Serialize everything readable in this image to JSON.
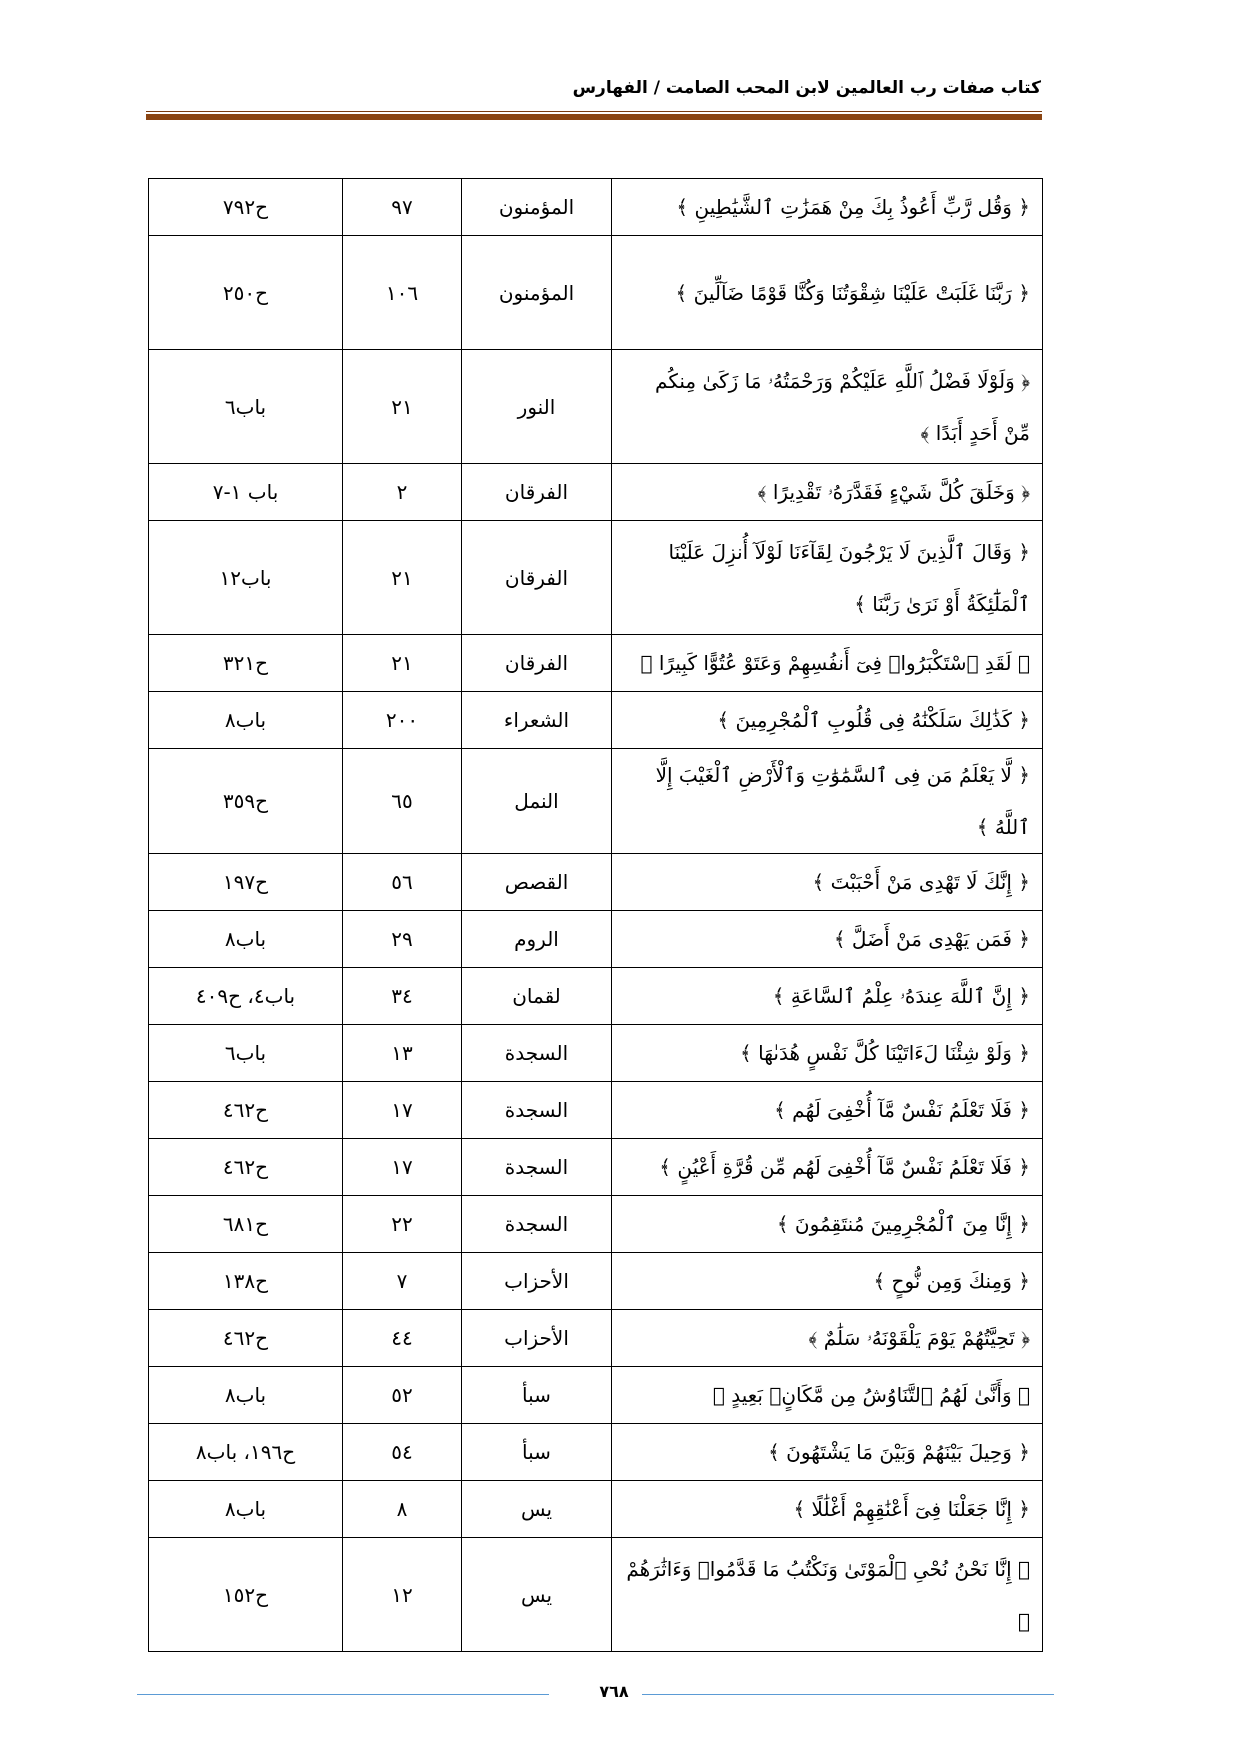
{
  "header": {
    "title": "كتاب صفات رب العالمين لابن المحب الصامت / الفهارس",
    "rule_color": "#8b4513"
  },
  "table": {
    "rows": [
      {
        "ayah": "﴿ وَقُل رَّبِّ أَعُوذُ بِكَ مِنْ هَمَزَٰتِ ٱلشَّيَٰطِينِ ﴾",
        "surah": "المؤمنون",
        "verse": "٩٧",
        "ref": "ح٧٩٢",
        "tall": false
      },
      {
        "ayah": "﴿ رَبَّنَا غَلَبَتْ عَلَيْنَا شِقْوَتُنَا وَكُنَّا قَوْمًا ضَآلِّينَ ﴾",
        "surah": "المؤمنون",
        "verse": "١٠٦",
        "ref": "ح٢٥٠",
        "tall": true
      },
      {
        "ayah": "﴿ وَلَوْلَا فَضْلُ ٱللَّهِ عَلَيْكُمْ وَرَحْمَتُهُۥ مَا زَكَىٰ مِنكُم مِّنْ أَحَدٍ أَبَدًا ﴾",
        "surah": "النور",
        "verse": "٢١",
        "ref": "باب٦",
        "tall": true
      },
      {
        "ayah": "﴿ وَخَلَقَ كُلَّ شَيْءٍ فَقَدَّرَهُۥ تَقْدِيرًا ﴾",
        "surah": "الفرقان",
        "verse": "٢",
        "ref": "باب ١-٧",
        "tall": false
      },
      {
        "ayah": "﴿ وَقَالَ ٱلَّذِينَ لَا يَرْجُونَ لِقَآءَنَا لَوْلَآ أُنزِلَ عَلَيْنَا ٱلْمَلَٰٓئِكَةُ أَوْ نَرَىٰ رَبَّنَا ﴾",
        "surah": "الفرقان",
        "verse": "٢١",
        "ref": "باب١٢",
        "tall": true
      },
      {
        "ayah": "﴿ لَقَدِ ٱسْتَكْبَرُوا۟ فِىٓ أَنفُسِهِمْ وَعَتَوْ عُتُوًّا كَبِيرًا ﴾",
        "surah": "الفرقان",
        "verse": "٢١",
        "ref": "ح٣٢١",
        "tall": false
      },
      {
        "ayah": "﴿ كَذَٰلِكَ سَلَكْنَٰهُ فِى قُلُوبِ ٱلْمُجْرِمِينَ ﴾",
        "surah": "الشعراء",
        "verse": "٢٠٠",
        "ref": "باب٨",
        "tall": false
      },
      {
        "ayah": "﴿ لَّا يَعْلَمُ مَن فِى ٱلسَّمَٰوَٰتِ وَٱلْأَرْضِ ٱلْغَيْبَ إِلَّا ٱللَّهُ ﴾",
        "surah": "النمل",
        "verse": "٦٥",
        "ref": "ح٣٥٩",
        "tall": false
      },
      {
        "ayah": "﴿ إِنَّكَ لَا تَهْدِى مَنْ أَحْبَبْتَ ﴾",
        "surah": "القصص",
        "verse": "٥٦",
        "ref": "ح١٩٧",
        "tall": false
      },
      {
        "ayah": "﴿ فَمَن يَهْدِى مَنْ أَضَلَّ ﴾",
        "surah": "الروم",
        "verse": "٢٩",
        "ref": "باب٨",
        "tall": false
      },
      {
        "ayah": "﴿ إِنَّ ٱللَّهَ عِندَهُۥ عِلْمُ ٱلسَّاعَةِ ﴾",
        "surah": "لقمان",
        "verse": "٣٤",
        "ref": "باب٤، ح٤٠٩",
        "tall": false
      },
      {
        "ayah": "﴿ وَلَوْ شِئْنَا لَءَاتَيْنَا كُلَّ نَفْسٍ هُدَىٰهَا ﴾",
        "surah": "السجدة",
        "verse": "١٣",
        "ref": "باب٦",
        "tall": false
      },
      {
        "ayah": "﴿ فَلَا تَعْلَمُ نَفْسٌ مَّآ أُخْفِىَ لَهُم ﴾",
        "surah": "السجدة",
        "verse": "١٧",
        "ref": "ح٤٦٢",
        "tall": false
      },
      {
        "ayah": "﴿ فَلَا تَعْلَمُ نَفْسٌ مَّآ أُخْفِىَ لَهُم مِّن قُرَّةِ أَعْيُنٍ ﴾",
        "surah": "السجدة",
        "verse": "١٧",
        "ref": "ح٤٦٢",
        "tall": false
      },
      {
        "ayah": "﴿ إِنَّا مِنَ ٱلْمُجْرِمِينَ مُنتَقِمُونَ ﴾",
        "surah": "السجدة",
        "verse": "٢٢",
        "ref": "ح٦٨١",
        "tall": false
      },
      {
        "ayah": "﴿ وَمِنكَ وَمِن نُّوحٍ ﴾",
        "surah": "الأحزاب",
        "verse": "٧",
        "ref": "ح١٣٨",
        "tall": false
      },
      {
        "ayah": "﴿ تَحِيَّتُهُمْ يَوْمَ يَلْقَوْنَهُۥ سَلَٰمٌ ﴾",
        "surah": "الأحزاب",
        "verse": "٤٤",
        "ref": "ح٤٦٢",
        "tall": false
      },
      {
        "ayah": "﴿ وَأَنَّىٰ لَهُمُ ٱلتَّنَاوُشُ مِن مَّكَانٍۭ بَعِيدٍ ﴾",
        "surah": "سبأ",
        "verse": "٥٢",
        "ref": "باب٨",
        "tall": false
      },
      {
        "ayah": "﴿ وَحِيلَ بَيْنَهُمْ وَبَيْنَ مَا يَشْتَهُونَ ﴾",
        "surah": "سبأ",
        "verse": "٥٤",
        "ref": "ح١٩٦، باب٨",
        "tall": false
      },
      {
        "ayah": "﴿ إِنَّا جَعَلْنَا فِىٓ أَعْنَٰقِهِمْ أَغْلَٰلًا ﴾",
        "surah": "يس",
        "verse": "٨",
        "ref": "باب٨",
        "tall": false
      },
      {
        "ayah": "﴿ إِنَّا نَحْنُ نُحْىِ ٱلْمَوْتَىٰ وَنَكْتُبُ مَا قَدَّمُوا۟ وَءَاثَٰرَهُمْ ﴾",
        "surah": "يس",
        "verse": "١٢",
        "ref": "ح١٥٢",
        "tall": true
      }
    ]
  },
  "footer": {
    "page_number": "٧٦٨",
    "line_color": "#5b9bd5"
  }
}
